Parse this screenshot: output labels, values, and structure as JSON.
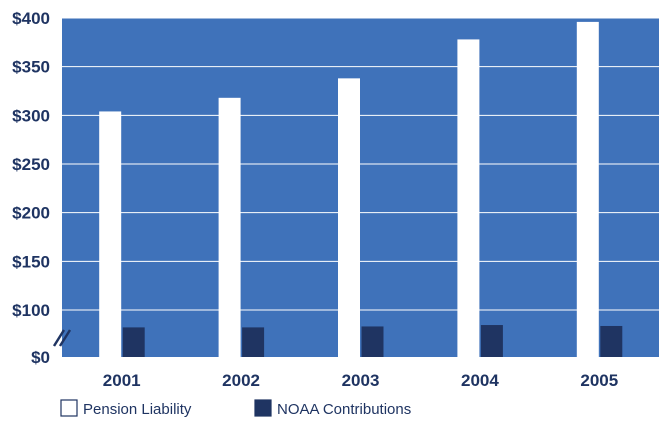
{
  "chart_data": {
    "type": "bar",
    "title": "",
    "xlabel": "",
    "ylabel": "",
    "axis_break": true,
    "grid": true,
    "legend_position": "bottom-left",
    "categories": [
      "2001",
      "2002",
      "2003",
      "2004",
      "2005"
    ],
    "y_ticks": [
      "$0",
      "$100",
      "$150",
      "$200",
      "$250",
      "$300",
      "$350",
      "$400"
    ],
    "ylim": [
      50,
      400
    ],
    "series": [
      {
        "name": "Pension Liability",
        "values": [
          304,
          318,
          338,
          378,
          396
        ],
        "color": "#ffffff"
      },
      {
        "name": "NOAA Contributions",
        "values": [
          0,
          0,
          0,
          0,
          0
        ],
        "color": "#1f3462"
      }
    ],
    "noaa_contribution_levels": [
      63,
      63,
      65,
      68,
      66
    ]
  },
  "colors": {
    "plot_background": "#3f72ba",
    "gridline": "#ffffff",
    "label": "#1f3462"
  }
}
